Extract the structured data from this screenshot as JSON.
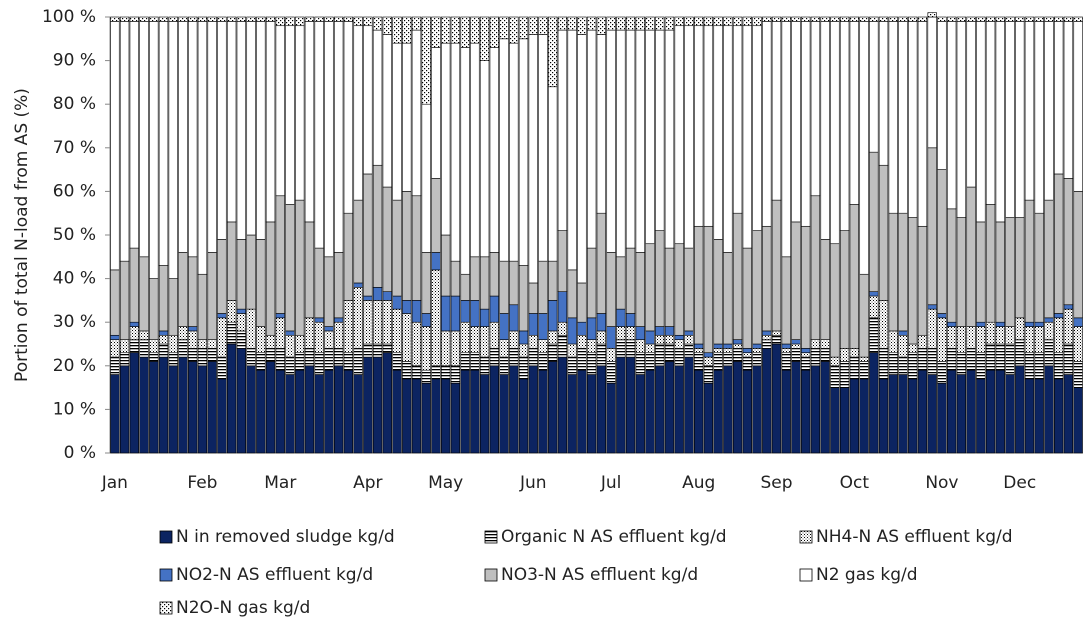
{
  "chart_data": {
    "type": "stacked-bar",
    "y_label": "Portion of total N-load from AS (%)",
    "categories": [
      "Jan",
      null,
      null,
      null,
      null,
      null,
      null,
      null,
      null,
      "Feb",
      null,
      null,
      null,
      null,
      null,
      null,
      null,
      "Mar",
      null,
      null,
      null,
      null,
      null,
      null,
      null,
      null,
      "Apr",
      null,
      null,
      null,
      null,
      null,
      null,
      null,
      "May",
      null,
      null,
      null,
      null,
      null,
      null,
      null,
      null,
      "Jun",
      null,
      null,
      null,
      null,
      null,
      null,
      null,
      "Jul",
      null,
      null,
      null,
      null,
      null,
      null,
      null,
      null,
      "Aug",
      null,
      null,
      null,
      null,
      null,
      null,
      null,
      "Sep",
      null,
      null,
      null,
      null,
      null,
      null,
      null,
      "Oct",
      null,
      null,
      null,
      null,
      null,
      null,
      null,
      null,
      "Nov",
      null,
      null,
      null,
      null,
      null,
      null,
      null,
      "Dec",
      null,
      null,
      null,
      null,
      null,
      null
    ],
    "ylim": [
      0,
      100
    ],
    "yticks": [
      {
        "value": 0,
        "label": "0 %"
      },
      {
        "value": 10,
        "label": "10 %"
      },
      {
        "value": 20,
        "label": "20 %"
      },
      {
        "value": 30,
        "label": "30 %"
      },
      {
        "value": 40,
        "label": "40 %"
      },
      {
        "value": 50,
        "label": "50 %"
      },
      {
        "value": 60,
        "label": "60 %"
      },
      {
        "value": 70,
        "label": "70 %"
      },
      {
        "value": 80,
        "label": "80 %"
      },
      {
        "value": 90,
        "label": "90 %"
      },
      {
        "value": 100,
        "label": "100 %"
      }
    ],
    "series": [
      {
        "name": "N in removed sludge kg/d",
        "color": "#0c2461",
        "pattern": "solid",
        "values": [
          18,
          20,
          23,
          22,
          21,
          22,
          20,
          22,
          21,
          20,
          21,
          17,
          25,
          24,
          20,
          19,
          21,
          19,
          18,
          19,
          20,
          18,
          19,
          20,
          19,
          18,
          22,
          22,
          23,
          19,
          17,
          17,
          16,
          17,
          17,
          16,
          19,
          19,
          18,
          20,
          18,
          20,
          17,
          20,
          19,
          21,
          22,
          18,
          19,
          18,
          20,
          16,
          22,
          22,
          18,
          19,
          20,
          21,
          20,
          22,
          19,
          16,
          19,
          20,
          21,
          19,
          20,
          24,
          25,
          19,
          21,
          19,
          20,
          21,
          15,
          15,
          17,
          17,
          23,
          17,
          18,
          18,
          17,
          19,
          18,
          16,
          19,
          18,
          19,
          17,
          19,
          19,
          18,
          20,
          17,
          17,
          20,
          17,
          18,
          15
        ]
      },
      {
        "name": "Organic N AS effluent kg/d",
        "color": "#000000",
        "pattern": "hlines",
        "values": [
          4,
          3,
          3,
          4,
          2,
          3,
          3,
          4,
          3,
          4,
          3,
          5,
          5,
          4,
          4,
          4,
          3,
          5,
          4,
          4,
          4,
          5,
          5,
          4,
          4,
          6,
          3,
          3,
          2,
          4,
          4,
          3,
          3,
          3,
          3,
          4,
          4,
          4,
          4,
          4,
          4,
          4,
          5,
          4,
          4,
          4,
          5,
          4,
          5,
          5,
          5,
          5,
          4,
          4,
          5,
          4,
          5,
          4,
          4,
          3,
          4,
          4,
          4,
          3,
          3,
          3,
          3,
          2,
          2,
          4,
          3,
          3,
          4,
          3,
          5,
          6,
          5,
          4,
          8,
          7,
          5,
          4,
          6,
          5,
          6,
          5,
          5,
          5,
          5,
          6,
          6,
          6,
          7,
          6,
          6,
          6,
          6,
          6,
          7,
          6
        ]
      },
      {
        "name": "NH4-N AS effluent kg/d",
        "color": "#000000",
        "pattern": "dense-dots",
        "values": [
          4,
          3,
          3,
          2,
          3,
          2,
          4,
          3,
          4,
          2,
          2,
          9,
          5,
          4,
          9,
          6,
          3,
          7,
          5,
          4,
          7,
          7,
          4,
          6,
          12,
          14,
          10,
          10,
          10,
          10,
          11,
          10,
          10,
          22,
          8,
          8,
          7,
          6,
          7,
          6,
          4,
          4,
          3,
          3,
          3,
          3,
          3,
          3,
          3,
          3,
          3,
          3,
          3,
          3,
          3,
          2,
          2,
          2,
          2,
          2,
          1,
          2,
          1,
          1,
          1,
          1,
          1,
          1,
          1,
          1,
          1,
          1,
          2,
          2,
          2,
          3,
          2,
          1,
          5,
          11,
          5,
          5,
          2,
          3,
          9,
          10,
          5,
          6,
          5,
          6,
          5,
          4,
          4,
          5,
          6,
          6,
          4,
          8,
          8,
          8
        ]
      },
      {
        "name": "NO2-N AS effluent kg/d",
        "color": "#4472c4",
        "pattern": "solid",
        "values": [
          1,
          0,
          1,
          0,
          0,
          1,
          0,
          0,
          1,
          0,
          0,
          1,
          0,
          1,
          0,
          0,
          0,
          1,
          1,
          0,
          0,
          1,
          1,
          1,
          0,
          1,
          1,
          3,
          2,
          3,
          3,
          5,
          3,
          4,
          8,
          8,
          5,
          6,
          4,
          6,
          6,
          6,
          3,
          5,
          6,
          7,
          7,
          6,
          3,
          5,
          4,
          5,
          4,
          3,
          3,
          3,
          2,
          2,
          1,
          1,
          1,
          1,
          1,
          1,
          1,
          1,
          1,
          1,
          0,
          1,
          1,
          1,
          0,
          0,
          0,
          0,
          0,
          0,
          1,
          0,
          0,
          1,
          0,
          0,
          1,
          1,
          1,
          0,
          0,
          1,
          0,
          1,
          0,
          0,
          1,
          1,
          1,
          1,
          1,
          2
        ]
      },
      {
        "name": "NO3-N AS effluent kg/d",
        "color": "#bfbfbf",
        "pattern": "solid",
        "values": [
          15,
          18,
          17,
          17,
          14,
          15,
          13,
          17,
          16,
          15,
          20,
          17,
          18,
          16,
          17,
          20,
          26,
          27,
          29,
          31,
          22,
          16,
          16,
          15,
          20,
          19,
          28,
          28,
          24,
          22,
          25,
          24,
          14,
          17,
          14,
          8,
          6,
          10,
          12,
          10,
          12,
          10,
          15,
          7,
          12,
          9,
          14,
          11,
          9,
          16,
          23,
          17,
          12,
          15,
          17,
          20,
          22,
          18,
          21,
          19,
          27,
          29,
          24,
          21,
          29,
          23,
          26,
          24,
          30,
          20,
          27,
          28,
          33,
          23,
          26,
          27,
          33,
          19,
          32,
          31,
          27,
          27,
          29,
          25,
          36,
          33,
          26,
          25,
          32,
          23,
          27,
          23,
          25,
          23,
          28,
          25,
          27,
          32,
          29,
          29
        ]
      },
      {
        "name": "N2 gas kg/d",
        "color": "#ffffff",
        "pattern": "solid",
        "values": [
          57,
          55,
          52,
          54,
          59,
          56,
          59,
          53,
          54,
          58,
          53,
          50,
          46,
          50,
          49,
          50,
          46,
          39,
          41,
          40,
          46,
          52,
          54,
          53,
          44,
          40,
          34,
          31,
          35,
          36,
          34,
          38,
          34,
          30,
          44,
          50,
          52,
          49,
          45,
          47,
          51,
          50,
          52,
          57,
          52,
          40,
          46,
          55,
          57,
          50,
          41,
          51,
          52,
          50,
          51,
          49,
          46,
          50,
          50,
          51,
          46,
          46,
          49,
          52,
          43,
          51,
          47,
          47,
          41,
          54,
          46,
          47,
          40,
          50,
          51,
          48,
          42,
          58,
          30,
          33,
          44,
          44,
          45,
          47,
          30,
          34,
          43,
          45,
          38,
          46,
          42,
          46,
          45,
          45,
          41,
          44,
          41,
          35,
          36,
          39
        ]
      },
      {
        "name": "N2O-N gas kg/d",
        "color": "#000000",
        "pattern": "sparse-dots",
        "values": [
          1,
          1,
          1,
          1,
          1,
          1,
          1,
          1,
          1,
          1,
          1,
          1,
          1,
          1,
          1,
          1,
          1,
          2,
          2,
          2,
          1,
          1,
          1,
          1,
          1,
          2,
          2,
          3,
          4,
          6,
          6,
          3,
          20,
          7,
          6,
          6,
          7,
          6,
          10,
          7,
          5,
          6,
          5,
          4,
          4,
          16,
          3,
          3,
          4,
          3,
          4,
          3,
          3,
          3,
          3,
          3,
          3,
          3,
          2,
          2,
          2,
          2,
          2,
          2,
          2,
          2,
          2,
          1,
          1,
          1,
          1,
          1,
          1,
          1,
          1,
          1,
          1,
          1,
          1,
          1,
          1,
          1,
          1,
          1,
          1,
          1,
          1,
          1,
          1,
          1,
          1,
          1,
          1,
          1,
          1,
          1,
          1,
          1,
          1,
          1
        ]
      }
    ]
  }
}
